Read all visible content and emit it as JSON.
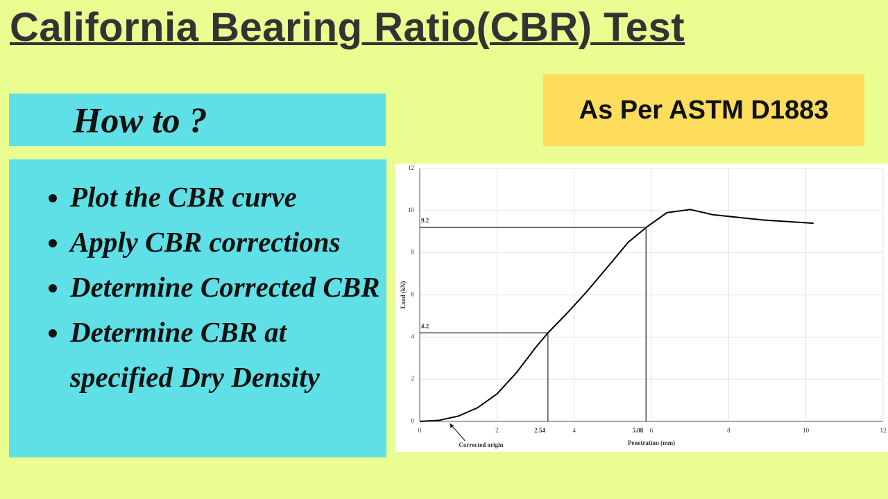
{
  "title": "California Bearing Ratio(CBR) Test",
  "how_to": "How to ?",
  "standard": "As Per ASTM D1883",
  "bullets": [
    "Plot the CBR curve",
    "Apply CBR corrections",
    "Determine Corrected CBR",
    "Determine CBR at specified Dry Density"
  ],
  "chart_data": {
    "type": "line",
    "x_label": "Penetration (mm)",
    "y_label": "Load (kN)",
    "x": [
      0,
      0.5,
      1,
      1.5,
      2,
      2.5,
      3,
      3.32,
      3.8,
      4.3,
      4.9,
      5.4,
      5.9,
      6.4,
      7.0,
      7.6,
      8.9,
      10.2
    ],
    "series": [
      {
        "color": "#000000",
        "values": [
          0,
          0.05,
          0.25,
          0.65,
          1.3,
          2.3,
          3.5,
          4.2,
          5.1,
          6.1,
          7.4,
          8.5,
          9.25,
          9.9,
          10.05,
          9.8,
          9.55,
          9.4
        ]
      }
    ],
    "xlim": [
      0,
      12
    ],
    "xticks": [
      0,
      2,
      4,
      6,
      8,
      10,
      12
    ],
    "ylim": [
      0,
      12
    ],
    "yticks": [
      0,
      2,
      4,
      6,
      8,
      10,
      12
    ],
    "corrected_origin": {
      "x": 0.78,
      "label": "Corrected origin"
    },
    "annotations": [
      {
        "x": 2.54,
        "y": 4.2
      },
      {
        "x": 5.08,
        "y": 9.2
      }
    ]
  }
}
